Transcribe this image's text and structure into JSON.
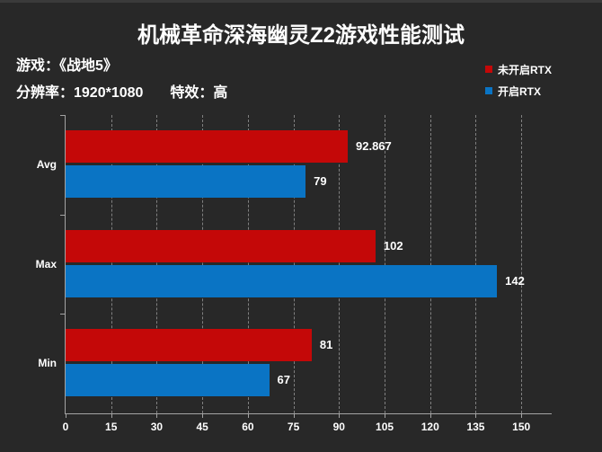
{
  "title": "机械革命深海幽灵Z2游戏性能测试",
  "info": {
    "game": "游戏：《战地5》",
    "resolution": "分辨率：1920*1080",
    "effects": "特效：高"
  },
  "legend": [
    {
      "label": "未开启RTX",
      "color": "#c40808",
      "icon": "legend-swatch-red"
    },
    {
      "label": "开启RTX",
      "color": "#0a74c4",
      "icon": "legend-swatch-blue"
    }
  ],
  "chart_data": {
    "type": "bar",
    "orientation": "horizontal",
    "title": "机械革命深海幽灵Z2游戏性能测试",
    "categories": [
      "Avg",
      "Max",
      "Min"
    ],
    "series": [
      {
        "name": "未开启RTX",
        "color": "#c40808",
        "values": [
          92.867,
          102,
          81
        ],
        "value_labels": [
          "92.867",
          "102",
          "81"
        ]
      },
      {
        "name": "开启RTX",
        "color": "#0a74c4",
        "values": [
          79,
          142,
          67
        ],
        "value_labels": [
          "79",
          "142",
          "67"
        ]
      }
    ],
    "xlabel": "",
    "ylabel": "",
    "x_ticks": [
      0,
      15,
      30,
      45,
      60,
      75,
      90,
      105,
      120,
      135,
      150
    ],
    "xlim": [
      0,
      160
    ],
    "grid": "vertical-dashed",
    "legend_position": "top-right"
  },
  "colors": {
    "background": "#282828",
    "text": "#ffffff",
    "axis": "#a3a3a3",
    "grid": "#979797",
    "series_rtx_off": "#c40808",
    "series_rtx_on": "#0a74c4"
  }
}
